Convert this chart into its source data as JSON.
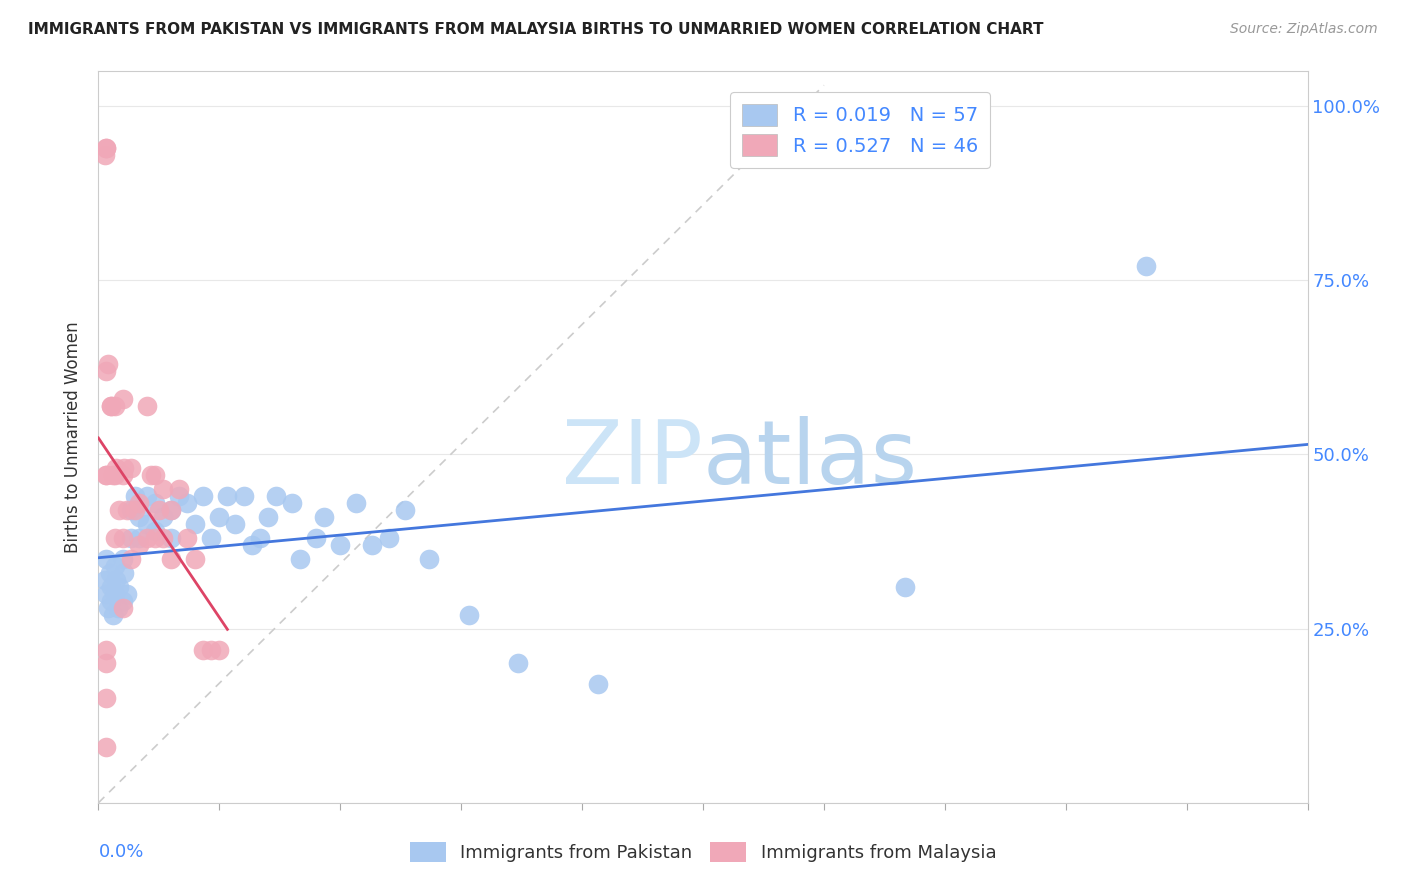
{
  "title": "IMMIGRANTS FROM PAKISTAN VS IMMIGRANTS FROM MALAYSIA BIRTHS TO UNMARRIED WOMEN CORRELATION CHART",
  "source": "Source: ZipAtlas.com",
  "ylabel": "Births to Unmarried Women",
  "xmin": 0.0,
  "xmax": 0.15,
  "ymin": 0.0,
  "ymax": 1.05,
  "ytick_vals": [
    0.0,
    0.25,
    0.5,
    0.75,
    1.0
  ],
  "ytick_labels": [
    "",
    "25.0%",
    "50.0%",
    "75.0%",
    "100.0%"
  ],
  "xtick_vals": [
    0.0,
    0.015,
    0.03,
    0.045,
    0.06,
    0.075,
    0.09,
    0.105,
    0.12,
    0.135,
    0.15
  ],
  "r_pakistan": 0.019,
  "n_pakistan": 57,
  "r_malaysia": 0.527,
  "n_malaysia": 46,
  "color_pakistan": "#a8c8f0",
  "color_malaysia": "#f0a8b8",
  "trendline_pakistan_color": "#4477dd",
  "trendline_malaysia_color": "#dd4466",
  "label_color": "#4488ff",
  "watermark_color": "#cce4f7",
  "pakistan_x": [
    0.0008,
    0.0009,
    0.001,
    0.0012,
    0.0014,
    0.0015,
    0.0016,
    0.0018,
    0.002,
    0.002,
    0.0022,
    0.0024,
    0.0026,
    0.003,
    0.003,
    0.0032,
    0.0035,
    0.004,
    0.004,
    0.0045,
    0.005,
    0.005,
    0.006,
    0.006,
    0.007,
    0.007,
    0.008,
    0.009,
    0.009,
    0.01,
    0.011,
    0.012,
    0.013,
    0.014,
    0.015,
    0.016,
    0.017,
    0.018,
    0.019,
    0.02,
    0.021,
    0.022,
    0.024,
    0.025,
    0.027,
    0.028,
    0.03,
    0.032,
    0.034,
    0.036,
    0.038,
    0.041,
    0.046,
    0.052,
    0.062,
    0.1,
    0.13
  ],
  "pakistan_y": [
    0.32,
    0.3,
    0.35,
    0.28,
    0.33,
    0.31,
    0.29,
    0.27,
    0.34,
    0.3,
    0.32,
    0.28,
    0.31,
    0.35,
    0.29,
    0.33,
    0.3,
    0.42,
    0.38,
    0.44,
    0.41,
    0.38,
    0.44,
    0.4,
    0.43,
    0.39,
    0.41,
    0.38,
    0.42,
    0.44,
    0.43,
    0.4,
    0.44,
    0.38,
    0.41,
    0.44,
    0.4,
    0.44,
    0.37,
    0.38,
    0.41,
    0.44,
    0.43,
    0.35,
    0.38,
    0.41,
    0.37,
    0.43,
    0.37,
    0.38,
    0.42,
    0.35,
    0.27,
    0.2,
    0.17,
    0.31,
    0.77
  ],
  "malaysia_x": [
    0.0008,
    0.001,
    0.001,
    0.001,
    0.001,
    0.0012,
    0.0015,
    0.0016,
    0.0018,
    0.002,
    0.002,
    0.002,
    0.0022,
    0.0025,
    0.003,
    0.003,
    0.003,
    0.003,
    0.0032,
    0.0035,
    0.004,
    0.004,
    0.0045,
    0.005,
    0.005,
    0.006,
    0.006,
    0.0065,
    0.007,
    0.007,
    0.0075,
    0.008,
    0.008,
    0.009,
    0.009,
    0.01,
    0.011,
    0.012,
    0.013,
    0.014,
    0.015,
    0.001,
    0.001,
    0.001,
    0.0009,
    0.001
  ],
  "malaysia_y": [
    0.93,
    0.94,
    0.94,
    0.47,
    0.47,
    0.63,
    0.57,
    0.57,
    0.47,
    0.57,
    0.47,
    0.38,
    0.48,
    0.42,
    0.58,
    0.47,
    0.38,
    0.28,
    0.48,
    0.42,
    0.48,
    0.35,
    0.42,
    0.43,
    0.37,
    0.57,
    0.38,
    0.47,
    0.47,
    0.38,
    0.42,
    0.45,
    0.38,
    0.42,
    0.35,
    0.45,
    0.38,
    0.35,
    0.22,
    0.22,
    0.22,
    0.62,
    0.22,
    0.08,
    0.2,
    0.15
  ]
}
